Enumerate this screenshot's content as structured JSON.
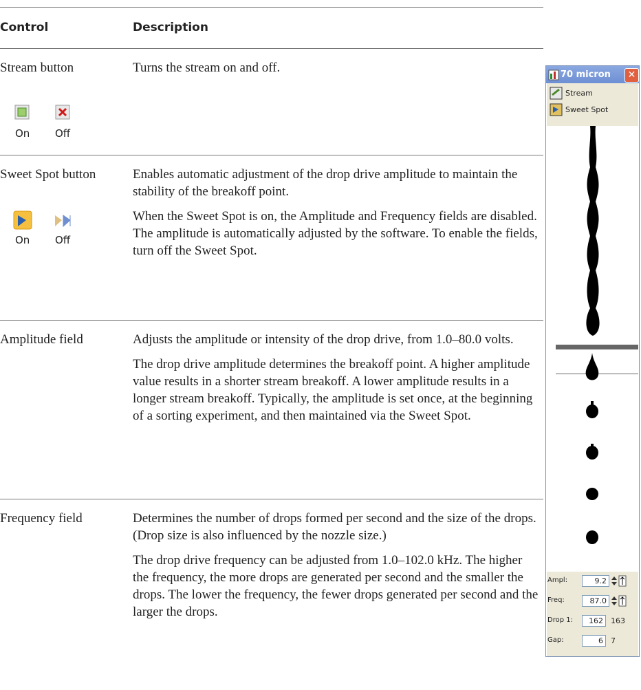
{
  "table": {
    "headers": [
      "Control",
      "Description"
    ],
    "rows": [
      {
        "control": "Stream button",
        "icons": [
          "On",
          "Off"
        ],
        "paragraphs": [
          "Turns the stream on and off."
        ]
      },
      {
        "control": "Sweet Spot button",
        "icons": [
          "On",
          "Off"
        ],
        "paragraphs": [
          "Enables automatic adjustment of the drop drive amplitude to maintain the stability of the breakoff point.",
          "When the Sweet Spot is on, the Amplitude and Frequency fields are disabled. The amplitude is automatically adjusted by the software. To enable the fields, turn off the Sweet Spot."
        ]
      },
      {
        "control": "Amplitude field",
        "paragraphs": [
          "Adjusts the amplitude or intensity of the drop drive, from 1.0–80.0 volts.",
          "The drop drive amplitude determines the breakoff point. A higher amplitude value results in a shorter stream breakoff. A lower amplitude results in a longer stream breakoff. Typically, the amplitude is set once, at the beginning of a sorting experiment, and then maintained via the Sweet Spot."
        ]
      },
      {
        "control": "Frequency field",
        "paragraphs": [
          "Determines the number of drops formed per second and the size of the drops. (Drop size is also influenced by the nozzle size.)",
          "The drop drive frequency can be adjusted from 1.0–102.0 kHz. The higher the frequency, the more drops are generated per second and the smaller the drops. The lower the frequency, the fewer drops generated per second and the larger the drops."
        ]
      }
    ]
  },
  "panel": {
    "title": "70 micron",
    "buttons": [
      "Stream",
      "Sweet Spot"
    ],
    "fields": [
      {
        "label": "Ampl:",
        "value": "9.2"
      },
      {
        "label": "Freq:",
        "value": "87.0"
      },
      {
        "label": "Drop 1:",
        "value": "162",
        "extra": "163"
      },
      {
        "label": "Gap:",
        "value": "6",
        "extra": "7"
      }
    ]
  }
}
